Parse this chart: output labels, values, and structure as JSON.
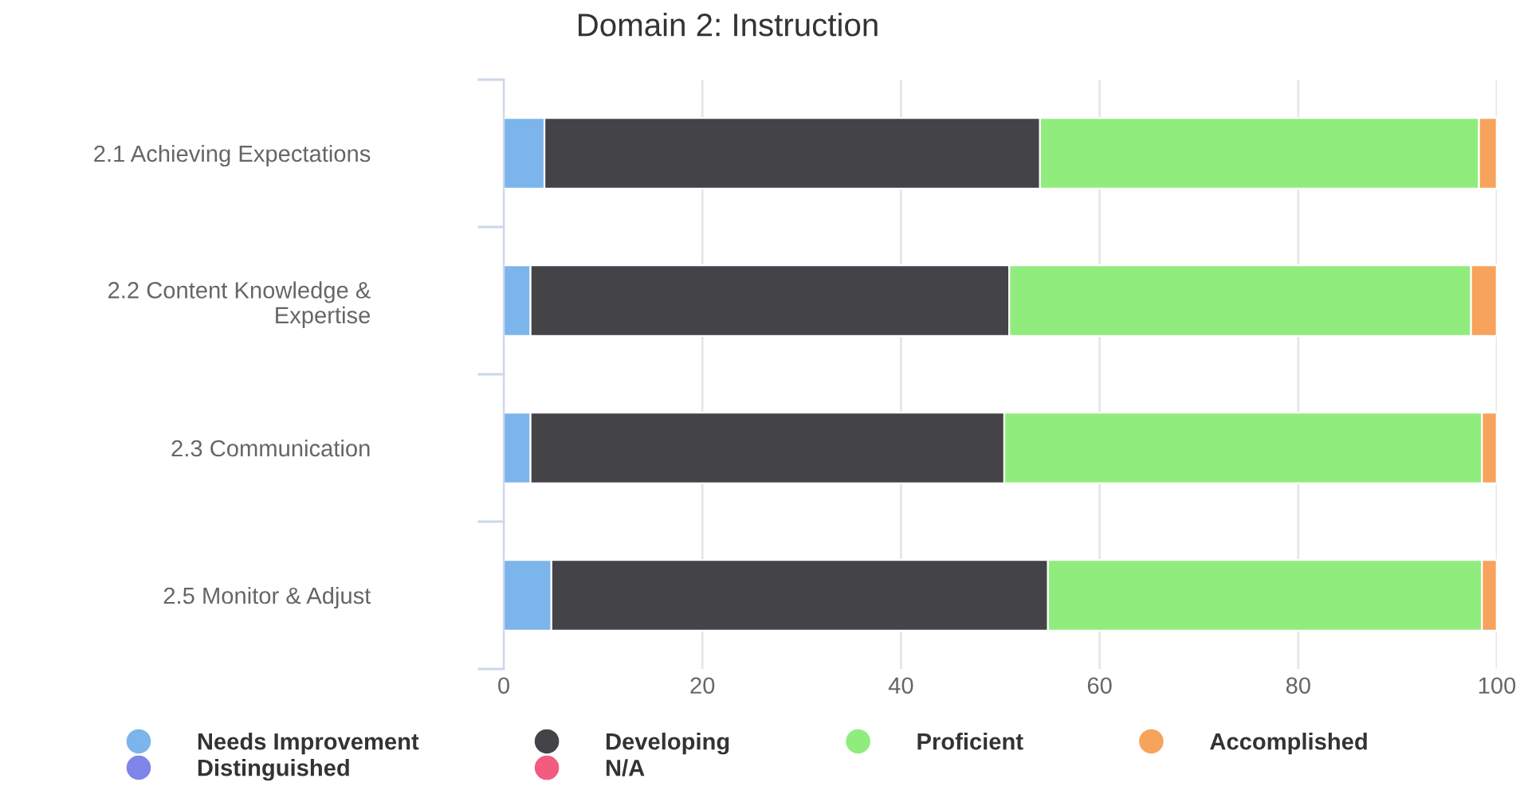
{
  "chart_data": {
    "type": "bar",
    "orientation": "horizontal",
    "stacked": true,
    "title": "Domain 2: Instruction",
    "categories": [
      "2.1 Achieving Expectations",
      "2.2 Content Knowledge &\nExpertise",
      "2.3 Communication",
      "2.5 Monitor & Adjust"
    ],
    "series": [
      {
        "name": "Needs Improvement",
        "color": "#7cb5ec",
        "values": [
          4.1,
          2.7,
          2.7,
          4.8
        ]
      },
      {
        "name": "Developing",
        "color": "#434348",
        "values": [
          49.9,
          48.2,
          47.7,
          50.0
        ]
      },
      {
        "name": "Proficient",
        "color": "#90ed7d",
        "values": [
          44.2,
          46.5,
          48.1,
          43.7
        ]
      },
      {
        "name": "Accomplished",
        "color": "#f7a35c",
        "values": [
          1.8,
          2.6,
          1.5,
          1.5
        ]
      },
      {
        "name": "Distinguished",
        "color": "#8085e9",
        "values": [
          0,
          0,
          0,
          0
        ]
      },
      {
        "name": "N/A",
        "color": "#f15c80",
        "values": [
          0,
          0,
          0,
          0
        ]
      }
    ],
    "xlim": [
      0,
      100
    ],
    "xticks": [
      0,
      20,
      40,
      60,
      80,
      100
    ],
    "grid": "x",
    "legend": "bottom"
  }
}
